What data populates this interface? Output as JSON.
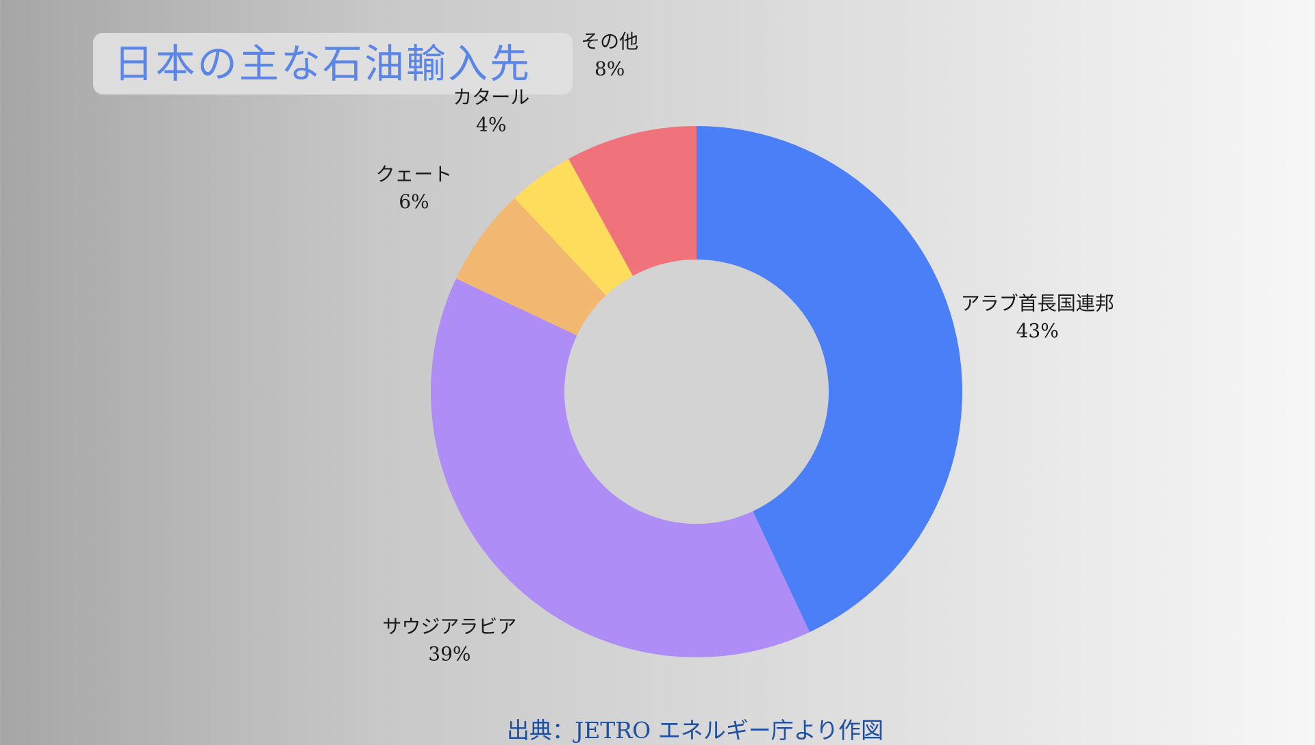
{
  "chart_data": {
    "type": "pie",
    "title": "日本の主な石油輸入先",
    "source": "出典：JETRO エネルギー庁より作図",
    "slices": [
      {
        "label": "アラブ首長国連邦",
        "value": 43,
        "value_label": "43%",
        "color": "#4a7ff7"
      },
      {
        "label": "サウジアラビア",
        "value": 39,
        "value_label": "39%",
        "color": "#ae8df6"
      },
      {
        "label": "クェート",
        "value": 6,
        "value_label": "6%",
        "color": "#f2b872"
      },
      {
        "label": "カタール",
        "value": 4,
        "value_label": "4%",
        "color": "#ffdd5c"
      },
      {
        "label": "その他",
        "value": 8,
        "value_label": "8%",
        "color": "#f0737c"
      }
    ],
    "donut": true,
    "legend": "none"
  }
}
